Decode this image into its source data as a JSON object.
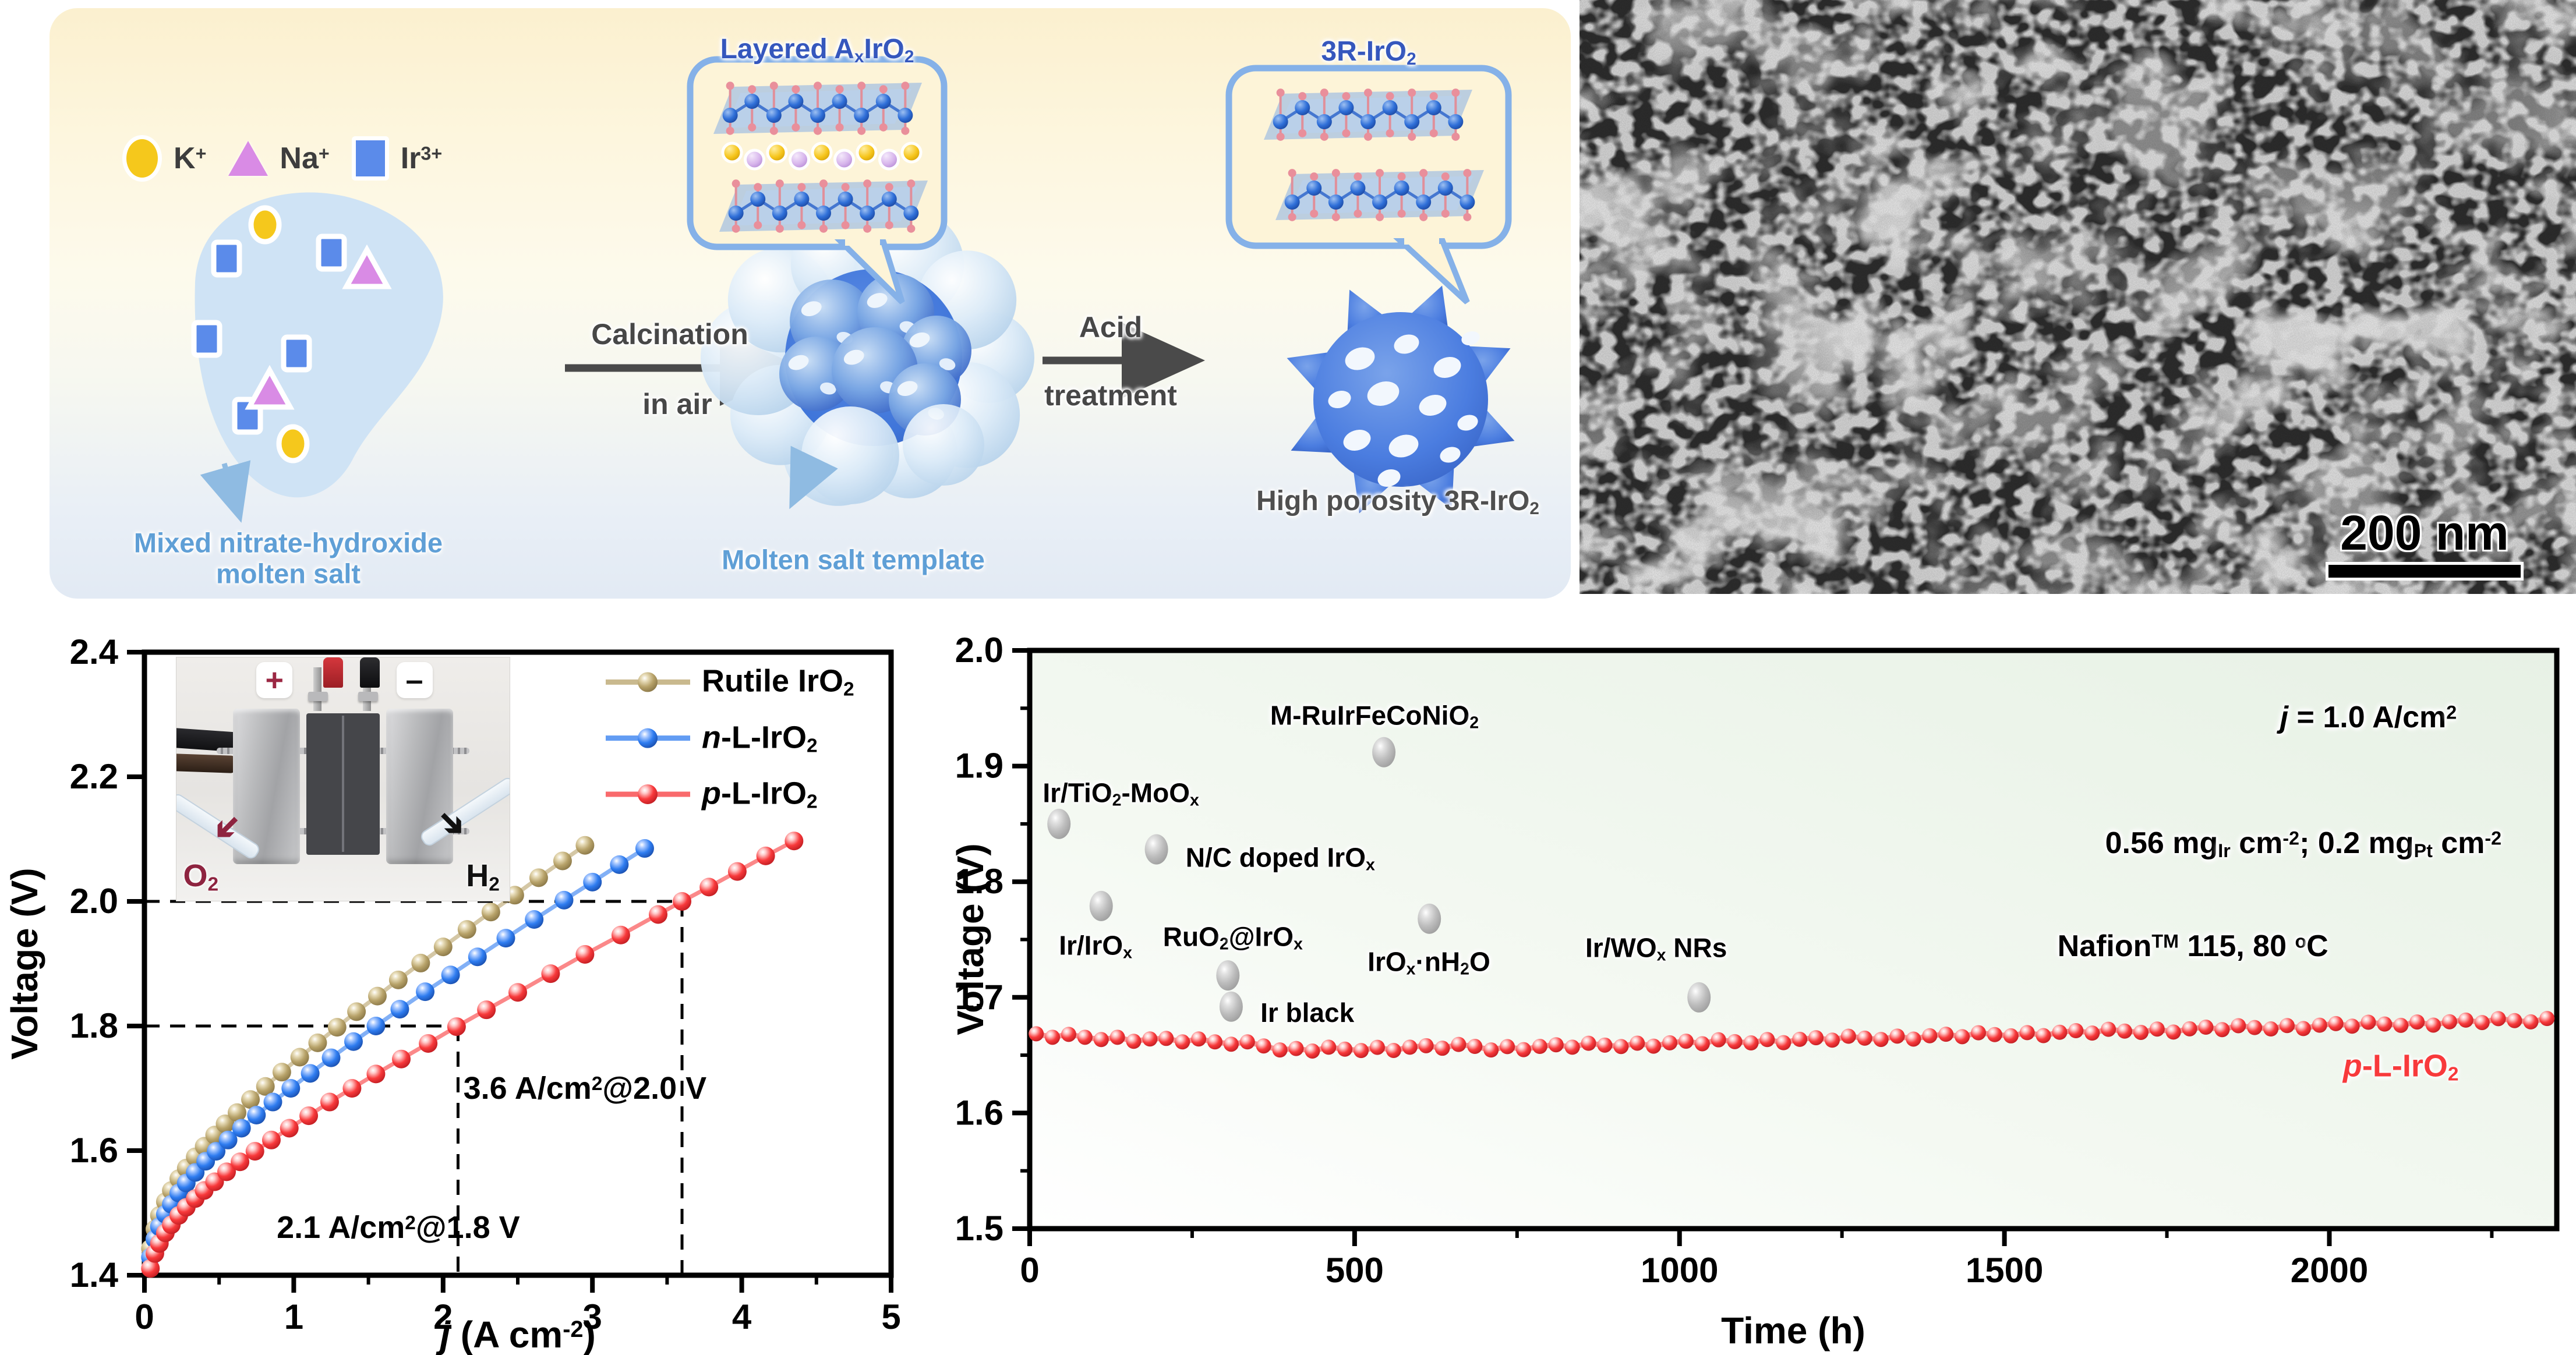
{
  "figure": {
    "schematic": {
      "legend": [
        {
          "name": "k-ion",
          "shape": "circle",
          "color": "#F5C81C",
          "label": "K<sup>+</sup>"
        },
        {
          "name": "na-ion",
          "shape": "triangle",
          "color": "#D98BE5",
          "label": "Na<sup>+</sup>"
        },
        {
          "name": "ir-ion",
          "shape": "square",
          "color": "#5B8BEA",
          "label": "Ir<sup>3+</sup>"
        }
      ],
      "precursor_label": "Mixed nitrate-hydroxide<br>molten salt",
      "step1_line1": "Calcination",
      "step1_line2": "in air",
      "step2_line1": "Acid",
      "step2_line2": "treatment",
      "callout_layered_title": "Layered A<sub>x</sub>IrO<sub>2</sub>",
      "callout_3r_title": "3R-IrO<sub>2</sub>",
      "template_label": "Molten salt template",
      "product_label": "High porosity 3R-IrO<sub>2</sub>",
      "colors": {
        "panel_accent": "#85B1E8",
        "matrix_blue": "#3F75D9",
        "label_blue": "#5F9FD6"
      }
    },
    "tem": {
      "scale_label": "200 nm"
    }
  },
  "chart_data": [
    {
      "id": "polarization",
      "type": "line",
      "xlabel_html": "<i>j</i> (A cm<sup>-2</sup>)",
      "ylabel": "Voltage (V)",
      "xlim": [
        0,
        5
      ],
      "ylim": [
        1.4,
        2.4
      ],
      "xticks": [
        [
          0,
          "0"
        ],
        [
          1,
          "1"
        ],
        [
          2,
          "2"
        ],
        [
          3,
          "3"
        ],
        [
          4,
          "4"
        ],
        [
          5,
          "5"
        ]
      ],
      "yticks": [
        [
          1.4,
          "1.4"
        ],
        [
          1.6,
          "1.6"
        ],
        [
          1.8,
          "1.8"
        ],
        [
          2.0,
          "2.0"
        ],
        [
          2.2,
          "2.2"
        ],
        [
          2.4,
          "2.4"
        ]
      ],
      "x_minor_step": 0.5,
      "y_minor_step": 0.1,
      "grid": false,
      "legend_position": "top-right-inside",
      "series": [
        {
          "name": "Rutile IrO<sub>2</sub>",
          "color": "#B7A269",
          "points": [
            [
              0.04,
              1.443
            ],
            [
              0.07,
              1.474
            ],
            [
              0.1,
              1.496
            ],
            [
              0.14,
              1.518
            ],
            [
              0.18,
              1.536
            ],
            [
              0.23,
              1.555
            ],
            [
              0.28,
              1.572
            ],
            [
              0.34,
              1.59
            ],
            [
              0.4,
              1.607
            ],
            [
              0.47,
              1.625
            ],
            [
              0.54,
              1.643
            ],
            [
              0.62,
              1.661
            ],
            [
              0.71,
              1.682
            ],
            [
              0.81,
              1.703
            ],
            [
              0.92,
              1.726
            ],
            [
              1.04,
              1.75
            ],
            [
              1.16,
              1.773
            ],
            [
              1.29,
              1.798
            ],
            [
              1.42,
              1.823
            ],
            [
              1.56,
              1.848
            ],
            [
              1.7,
              1.874
            ],
            [
              1.85,
              1.901
            ],
            [
              2.0,
              1.927
            ],
            [
              2.16,
              1.955
            ],
            [
              2.32,
              1.983
            ],
            [
              2.48,
              2.01
            ],
            [
              2.64,
              2.038
            ],
            [
              2.8,
              2.065
            ],
            [
              2.95,
              2.09
            ]
          ]
        },
        {
          "name": "<i>n</i>-L-IrO<sub>2</sub>",
          "color": "#2E7CF0",
          "points": [
            [
              0.04,
              1.429
            ],
            [
              0.07,
              1.458
            ],
            [
              0.1,
              1.478
            ],
            [
              0.14,
              1.498
            ],
            [
              0.18,
              1.514
            ],
            [
              0.23,
              1.532
            ],
            [
              0.28,
              1.548
            ],
            [
              0.34,
              1.565
            ],
            [
              0.41,
              1.583
            ],
            [
              0.48,
              1.599
            ],
            [
              0.56,
              1.617
            ],
            [
              0.65,
              1.636
            ],
            [
              0.75,
              1.657
            ],
            [
              0.86,
              1.678
            ],
            [
              0.98,
              1.7
            ],
            [
              1.11,
              1.724
            ],
            [
              1.25,
              1.749
            ],
            [
              1.4,
              1.775
            ],
            [
              1.55,
              1.8
            ],
            [
              1.71,
              1.827
            ],
            [
              1.88,
              1.855
            ],
            [
              2.05,
              1.882
            ],
            [
              2.23,
              1.911
            ],
            [
              2.42,
              1.941
            ],
            [
              2.61,
              1.971
            ],
            [
              2.81,
              2.002
            ],
            [
              3.0,
              2.031
            ],
            [
              3.18,
              2.059
            ],
            [
              3.35,
              2.085
            ]
          ]
        },
        {
          "name": "<i>p</i>-L-IrO<sub>2</sub>",
          "color": "#F8393B",
          "points": [
            [
              0.04,
              1.411
            ],
            [
              0.07,
              1.435
            ],
            [
              0.1,
              1.451
            ],
            [
              0.14,
              1.468
            ],
            [
              0.18,
              1.481
            ],
            [
              0.23,
              1.496
            ],
            [
              0.28,
              1.509
            ],
            [
              0.34,
              1.523
            ],
            [
              0.4,
              1.536
            ],
            [
              0.47,
              1.55
            ],
            [
              0.55,
              1.566
            ],
            [
              0.64,
              1.582
            ],
            [
              0.74,
              1.599
            ],
            [
              0.85,
              1.617
            ],
            [
              0.97,
              1.636
            ],
            [
              1.1,
              1.656
            ],
            [
              1.24,
              1.678
            ],
            [
              1.39,
              1.7
            ],
            [
              1.55,
              1.723
            ],
            [
              1.72,
              1.747
            ],
            [
              1.9,
              1.772
            ],
            [
              2.09,
              1.799
            ],
            [
              2.29,
              1.826
            ],
            [
              2.5,
              1.854
            ],
            [
              2.72,
              1.884
            ],
            [
              2.95,
              1.915
            ],
            [
              3.19,
              1.946
            ],
            [
              3.44,
              1.979
            ],
            [
              3.6,
              2.0
            ],
            [
              3.78,
              2.023
            ],
            [
              3.97,
              2.048
            ],
            [
              4.16,
              2.073
            ],
            [
              4.35,
              2.097
            ]
          ]
        }
      ],
      "annotations": [
        {
          "text": "3.6 A/cm<sup>2</sup>@2.0 V",
          "x": 2.95,
          "y": 1.7
        },
        {
          "text": "2.1 A/cm<sup>2</sup>@1.8 V",
          "x": 1.7,
          "y": 1.477
        }
      ],
      "guides": [
        {
          "y": 2.0,
          "x": 3.6
        },
        {
          "y": 1.8,
          "x": 2.1
        }
      ],
      "inset": {
        "pos_label": "+",
        "neg_label": "–",
        "o2_label": "O<sub>2</sub>",
        "h2_label": "H<sub>2</sub>",
        "pos_color": "#9B2743",
        "neg_color": "#111111"
      }
    },
    {
      "id": "stability",
      "type": "scatter",
      "xlabel": "Time (h)",
      "ylabel": "Voltage (V)",
      "xlim": [
        0,
        2350
      ],
      "ylim": [
        1.5,
        2.0
      ],
      "xticks": [
        [
          0,
          "0"
        ],
        [
          500,
          "500"
        ],
        [
          1000,
          "1000"
        ],
        [
          1500,
          "1500"
        ],
        [
          2000,
          "2000"
        ]
      ],
      "yticks": [
        [
          1.5,
          "1.5"
        ],
        [
          1.6,
          "1.6"
        ],
        [
          1.7,
          "1.7"
        ],
        [
          1.8,
          "1.8"
        ],
        [
          1.9,
          "1.9"
        ],
        [
          2.0,
          "2.0"
        ]
      ],
      "x_minor_step": 250,
      "y_minor_step": 0.05,
      "bg_tint": "#E7F1E5",
      "series": {
        "name": "<i>p</i>-L-IrO<sub>2</sub>",
        "color": "#F8393B",
        "label_x": 2110,
        "label_y": 1.64,
        "points": [
          [
            10,
            1.6685
          ],
          [
            35,
            1.6655
          ],
          [
            60,
            1.668
          ],
          [
            85,
            1.6655
          ],
          [
            110,
            1.6635
          ],
          [
            135,
            1.6655
          ],
          [
            160,
            1.662
          ],
          [
            185,
            1.664
          ],
          [
            210,
            1.6645
          ],
          [
            235,
            1.6615
          ],
          [
            260,
            1.664
          ],
          [
            285,
            1.6615
          ],
          [
            310,
            1.6595
          ],
          [
            335,
            1.6615
          ],
          [
            360,
            1.658
          ],
          [
            385,
            1.6545
          ],
          [
            410,
            1.6558
          ],
          [
            435,
            1.6536
          ],
          [
            460,
            1.6569
          ],
          [
            485,
            1.6552
          ],
          [
            510,
            1.654
          ],
          [
            535,
            1.6568
          ],
          [
            560,
            1.6541
          ],
          [
            585,
            1.6569
          ],
          [
            610,
            1.6582
          ],
          [
            635,
            1.656
          ],
          [
            660,
            1.6593
          ],
          [
            685,
            1.6576
          ],
          [
            710,
            1.6545
          ],
          [
            735,
            1.6574
          ],
          [
            760,
            1.6548
          ],
          [
            785,
            1.6576
          ],
          [
            810,
            1.659
          ],
          [
            835,
            1.6569
          ],
          [
            860,
            1.6603
          ],
          [
            885,
            1.6587
          ],
          [
            910,
            1.6575
          ],
          [
            935,
            1.6604
          ],
          [
            960,
            1.6578
          ],
          [
            985,
            1.6607
          ],
          [
            1010,
            1.6621
          ],
          [
            1035,
            1.6599
          ],
          [
            1060,
            1.6633
          ],
          [
            1085,
            1.6617
          ],
          [
            1110,
            1.6606
          ],
          [
            1135,
            1.6635
          ],
          [
            1160,
            1.6608
          ],
          [
            1185,
            1.6637
          ],
          [
            1210,
            1.6651
          ],
          [
            1235,
            1.663
          ],
          [
            1260,
            1.6664
          ],
          [
            1285,
            1.6647
          ],
          [
            1310,
            1.6636
          ],
          [
            1335,
            1.6665
          ],
          [
            1360,
            1.6639
          ],
          [
            1385,
            1.6668
          ],
          [
            1410,
            1.6681
          ],
          [
            1435,
            1.666
          ],
          [
            1460,
            1.6694
          ],
          [
            1485,
            1.6678
          ],
          [
            1510,
            1.6667
          ],
          [
            1535,
            1.6695
          ],
          [
            1560,
            1.6669
          ],
          [
            1585,
            1.6698
          ],
          [
            1610,
            1.6712
          ],
          [
            1635,
            1.6691
          ],
          [
            1660,
            1.6724
          ],
          [
            1685,
            1.6708
          ],
          [
            1710,
            1.6697
          ],
          [
            1735,
            1.6726
          ],
          [
            1760,
            1.67
          ],
          [
            1785,
            1.6728
          ],
          [
            1810,
            1.6742
          ],
          [
            1835,
            1.6721
          ],
          [
            1860,
            1.6755
          ],
          [
            1885,
            1.6739
          ],
          [
            1910,
            1.6727
          ],
          [
            1935,
            1.6756
          ],
          [
            1960,
            1.673
          ],
          [
            1985,
            1.6759
          ],
          [
            2010,
            1.6773
          ],
          [
            2035,
            1.6751
          ],
          [
            2060,
            1.6785
          ],
          [
            2085,
            1.6769
          ],
          [
            2110,
            1.6758
          ],
          [
            2135,
            1.6787
          ],
          [
            2160,
            1.676
          ],
          [
            2185,
            1.6789
          ],
          [
            2210,
            1.6803
          ],
          [
            2235,
            1.6782
          ],
          [
            2260,
            1.6816
          ],
          [
            2285,
            1.6799
          ],
          [
            2310,
            1.6788
          ],
          [
            2335,
            1.6817
          ]
        ]
      },
      "benchmarks": [
        {
          "label": "Ir/TiO<sub>2</sub>-MoO<sub>x</sub>",
          "x": 45,
          "y": 1.85,
          "label_x": 20,
          "label_y": 1.876
        },
        {
          "label": "M-RuIrFeCoNiO<sub>2</sub>",
          "x": 545,
          "y": 1.912,
          "label_x": 370,
          "label_y": 1.943
        },
        {
          "label": "N/C doped IrO<sub>x</sub>",
          "x": 195,
          "y": 1.828,
          "label_x": 240,
          "label_y": 1.82
        },
        {
          "label": "Ir/IrO<sub>x</sub>",
          "x": 110,
          "y": 1.779,
          "label_x": 45,
          "label_y": 1.744
        },
        {
          "label": "RuO<sub>2</sub>@IrO<sub>x</sub>",
          "x": 305,
          "y": 1.719,
          "label_x": 205,
          "label_y": 1.752
        },
        {
          "label": "Ir black",
          "x": 310,
          "y": 1.692,
          "label_x": 355,
          "label_y": 1.687
        },
        {
          "label": "IrO<sub>x</sub>·nH<sub>2</sub>O",
          "x": 615,
          "y": 1.768,
          "label_x": 520,
          "label_y": 1.73
        },
        {
          "label": "Ir/WO<sub>x</sub> NRs",
          "x": 1030,
          "y": 1.7,
          "label_x": 855,
          "label_y": 1.742
        }
      ],
      "benchmark_color": "#BDBDBD",
      "conditions": [
        {
          "text": "<i>j</i> = 1.0 A/cm<sup>2</sup>",
          "x": 2060,
          "y": 1.942
        },
        {
          "text": "0.56 mg<sub>Ir</sub> cm<sup>-2</sup>; 0.2 mg<sub>Pt</sub> cm<sup>-2</sup>",
          "x": 1960,
          "y": 1.833
        },
        {
          "text": "Nafion<sup>TM</sup> 115, 80 <sup>o</sup>C",
          "x": 1790,
          "y": 1.744
        }
      ]
    }
  ]
}
